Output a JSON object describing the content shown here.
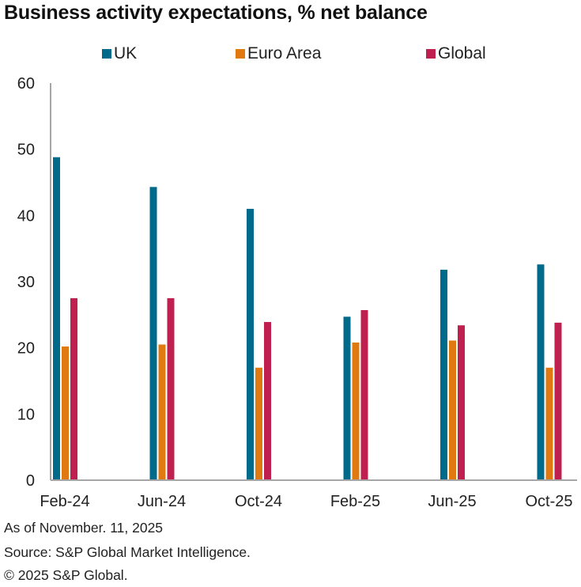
{
  "chart_data": {
    "type": "bar",
    "title": "Business activity expectations, % net balance",
    "xlabel": "",
    "ylabel": "",
    "ylim": [
      0,
      60
    ],
    "yticks": [
      0,
      10,
      20,
      30,
      40,
      50,
      60
    ],
    "grid": false,
    "legend_position": "top",
    "categories": [
      "Feb-24",
      "Jun-24",
      "Oct-24",
      "Feb-25",
      "Jun-25",
      "Oct-25"
    ],
    "series": [
      {
        "name": "UK",
        "color": "#006a8a",
        "values": [
          48.8,
          44.3,
          41.0,
          24.7,
          31.8,
          32.6
        ]
      },
      {
        "name": "Euro Area",
        "color": "#e07a10",
        "values": [
          20.2,
          20.5,
          17.0,
          20.8,
          21.1,
          17.0
        ]
      },
      {
        "name": "Global",
        "color": "#c0204f",
        "values": [
          27.5,
          27.5,
          23.9,
          25.7,
          23.4,
          23.8
        ]
      }
    ]
  },
  "footer": {
    "as_of": "As of November. 11, 2025",
    "source": "Source: S&P Global Market Intelligence.",
    "copyright": "© 2025 S&P Global."
  }
}
